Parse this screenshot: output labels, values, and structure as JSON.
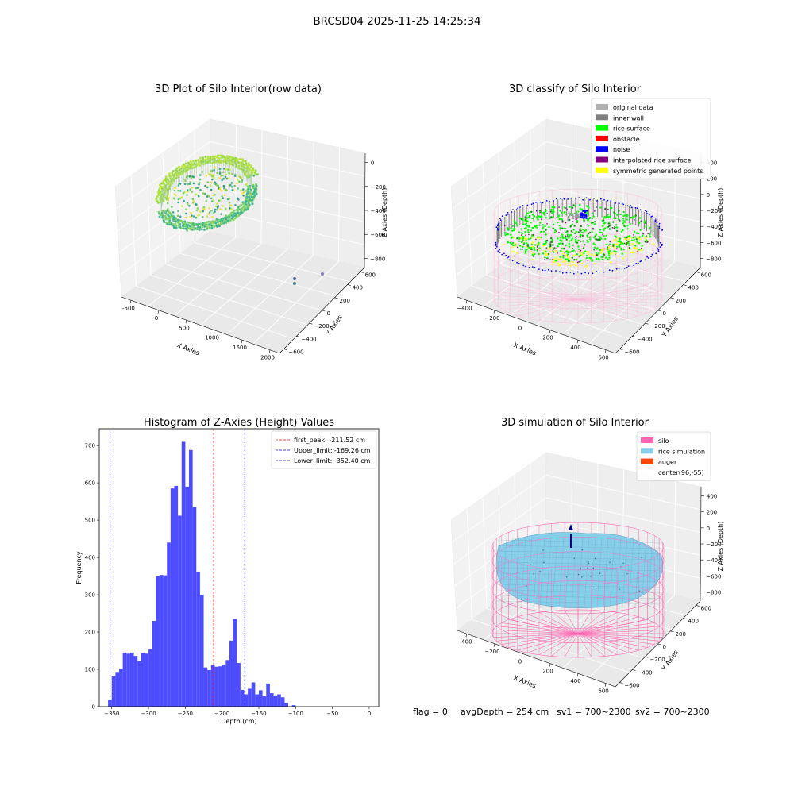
{
  "suptitle": "BRCSD04 2025-11-25 14:25:34",
  "footer": {
    "flag": "flag = 0",
    "avg_depth": "avgDepth = 254 cm",
    "sv1": "sv1 = 700~2300",
    "sv2": "sv2 = 700~2300"
  },
  "colors": {
    "original": "#b0b0b0",
    "inner_wall": "#808080",
    "rice_surface": "#00ff00",
    "obstacle": "#ff0000",
    "noise": "#0000ff",
    "interpolated": "#800080",
    "symmetric": "#ffff00",
    "silo": "#ff69b4",
    "rice_sim": "#87ceeb",
    "auger": "#ff4500",
    "hist_bar": "#4d4dff"
  },
  "chart_data": [
    {
      "type": "scatter3d",
      "title": "3D Plot of Silo Interior(row data)",
      "xlabel": "X Axies",
      "ylabel": "Y Axies",
      "zlabel": "Z Axies (Depth)",
      "xticks": [
        "-500",
        "0",
        "500",
        "1000",
        "1500",
        "2000"
      ],
      "yticks": [
        "600",
        "400",
        "200",
        "0",
        "−200",
        "−400",
        "−600"
      ],
      "zticks": [
        "0",
        "−200",
        "−400",
        "−600",
        "−800"
      ],
      "grid": true
    },
    {
      "type": "scatter3d",
      "title": "3D classify of Silo Interior",
      "xlabel": "X Axies",
      "ylabel": "Y Axies",
      "zlabel": "Z Axies (Depth)",
      "xticks": [
        "−400",
        "−200",
        "0",
        "200",
        "400",
        "600"
      ],
      "yticks": [
        "600",
        "400",
        "200",
        "0",
        "−200",
        "−400",
        "−600"
      ],
      "zticks": [
        "400",
        "200",
        "0",
        "−200",
        "−400",
        "−600",
        "−800"
      ],
      "legend": [
        "original data",
        "inner wall",
        "rice surface",
        "obstacle",
        "noise",
        "interpolated rice surface",
        "symmetric generated points"
      ],
      "legend_position": "top-right",
      "grid": true
    },
    {
      "type": "bar",
      "title": "Histogram of Z-Axies (Height) Values",
      "xlabel": "Depth (cm)",
      "ylabel": "Frequency",
      "bin_start": -355,
      "bin_width": 5,
      "values": [
        18,
        82,
        93,
        102,
        145,
        142,
        145,
        136,
        122,
        143,
        142,
        153,
        230,
        350,
        353,
        352,
        440,
        585,
        592,
        512,
        710,
        590,
        688,
        535,
        362,
        300,
        105,
        98,
        112,
        107,
        108,
        113,
        125,
        177,
        235,
        117,
        45,
        33,
        48,
        65,
        33,
        44,
        28,
        62,
        36,
        30,
        33,
        25,
        10,
        0,
        4,
        0
      ],
      "xlim": [
        -367,
        13
      ],
      "ylim": [
        0,
        745
      ],
      "xticks": [
        -350,
        -300,
        -250,
        -200,
        -150,
        -100,
        -50,
        0
      ],
      "yticks": [
        0,
        100,
        200,
        300,
        400,
        500,
        600,
        700
      ],
      "vlines": [
        {
          "label": "first_peak: -211.52 cm",
          "value": -211.52,
          "color": "#ff0000"
        },
        {
          "label": "Upper_limit: -169.26 cm",
          "value": -169.26,
          "color": "#0000ff"
        },
        {
          "label": "Lower_limit: -352.40 cm",
          "value": -352.4,
          "color": "#0000ff"
        }
      ],
      "legend_position": "top-right",
      "grid": false
    },
    {
      "type": "surface3d",
      "title": "3D simulation of Silo Interior",
      "xlabel": "X Axies",
      "ylabel": "Y Axies",
      "zlabel": "Z Axies (Depth)",
      "xticks": [
        "−400",
        "−200",
        "0",
        "200",
        "400",
        "600"
      ],
      "yticks": [
        "600",
        "400",
        "200",
        "0",
        "−200",
        "−400",
        "−600"
      ],
      "zticks": [
        "400",
        "200",
        "0",
        "−200",
        "−400",
        "−600",
        "−800"
      ],
      "legend": [
        "silo",
        "rice simulation",
        "auger",
        "center(96,-55)"
      ],
      "legend_position": "top-right",
      "grid": true
    }
  ]
}
